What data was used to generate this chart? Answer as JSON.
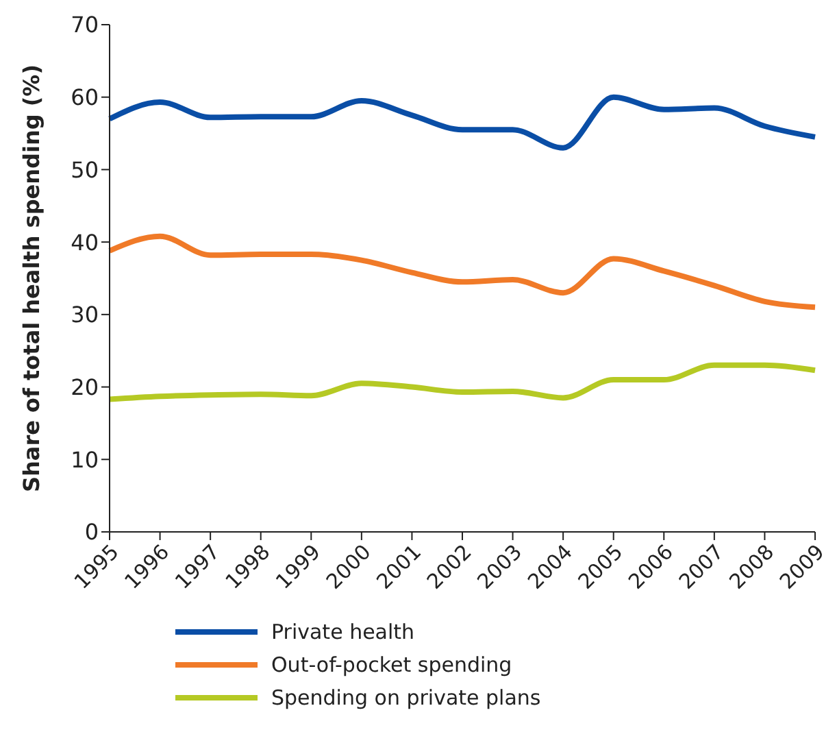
{
  "chart_data": {
    "type": "line",
    "ylabel": "Share of total health spending (%)",
    "categories": [
      "1995",
      "1996",
      "1997",
      "1998",
      "1999",
      "2000",
      "2001",
      "2002",
      "2003",
      "2004",
      "2005",
      "2006",
      "2007",
      "2008",
      "2009"
    ],
    "series": [
      {
        "name": "Private health",
        "color": "#0a4ea6",
        "values": [
          57,
          59.3,
          57.2,
          57.3,
          57.3,
          59.5,
          57.5,
          55.5,
          55.5,
          53,
          60,
          58.3,
          58.5,
          56,
          54.5
        ]
      },
      {
        "name": "Out-of-pocket spending",
        "color": "#f07a28",
        "values": [
          38.8,
          40.8,
          38.2,
          38.3,
          38.3,
          37.5,
          35.8,
          34.5,
          34.8,
          33,
          37.7,
          36,
          34,
          31.8,
          31
        ]
      },
      {
        "name": "Spending on private plans",
        "color": "#b5c924",
        "values": [
          18.3,
          18.7,
          18.9,
          19,
          18.8,
          20.5,
          20,
          19.3,
          19.4,
          18.5,
          21,
          21,
          23,
          23,
          22.3
        ]
      }
    ],
    "ylim": [
      0,
      70
    ],
    "yticks": [
      0,
      10,
      20,
      30,
      40,
      50,
      60,
      70
    ],
    "grid": false,
    "legend": "bottom",
    "marker": "none",
    "line_style": "solid"
  }
}
